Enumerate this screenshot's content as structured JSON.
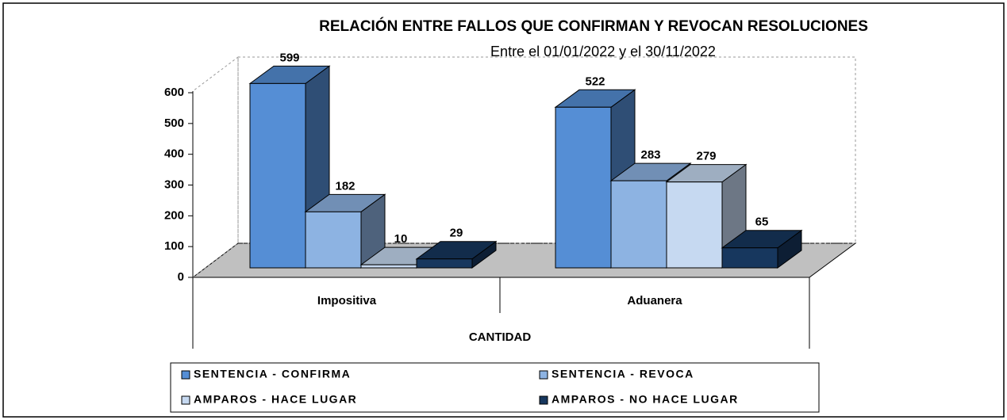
{
  "chart_data": {
    "type": "bar3d",
    "title": "RELACIÓN ENTRE FALLOS QUE CONFIRMAN Y REVOCAN RESOLUCIONES",
    "subtitle": "Entre el 01/01/2022 y el 30/11/2022",
    "x_label": "CANTIDAD",
    "categories": [
      "Impositiva",
      "Aduanera"
    ],
    "series": [
      {
        "name": "SENTENCIA - CONFIRMA",
        "color": "#558ed5",
        "values": [
          599,
          522
        ]
      },
      {
        "name": "SENTENCIA - REVOCA",
        "color": "#8db3e2",
        "values": [
          182,
          283
        ]
      },
      {
        "name": "AMPAROS - HACE LUGAR",
        "color": "#c6d9f1",
        "values": [
          10,
          279
        ]
      },
      {
        "name": "AMPAROS - NO HACE LUGAR",
        "color": "#17375e",
        "values": [
          29,
          65
        ]
      }
    ],
    "ylim": [
      0,
      600
    ],
    "yticks": [
      0,
      100,
      200,
      300,
      400,
      500,
      600
    ]
  }
}
